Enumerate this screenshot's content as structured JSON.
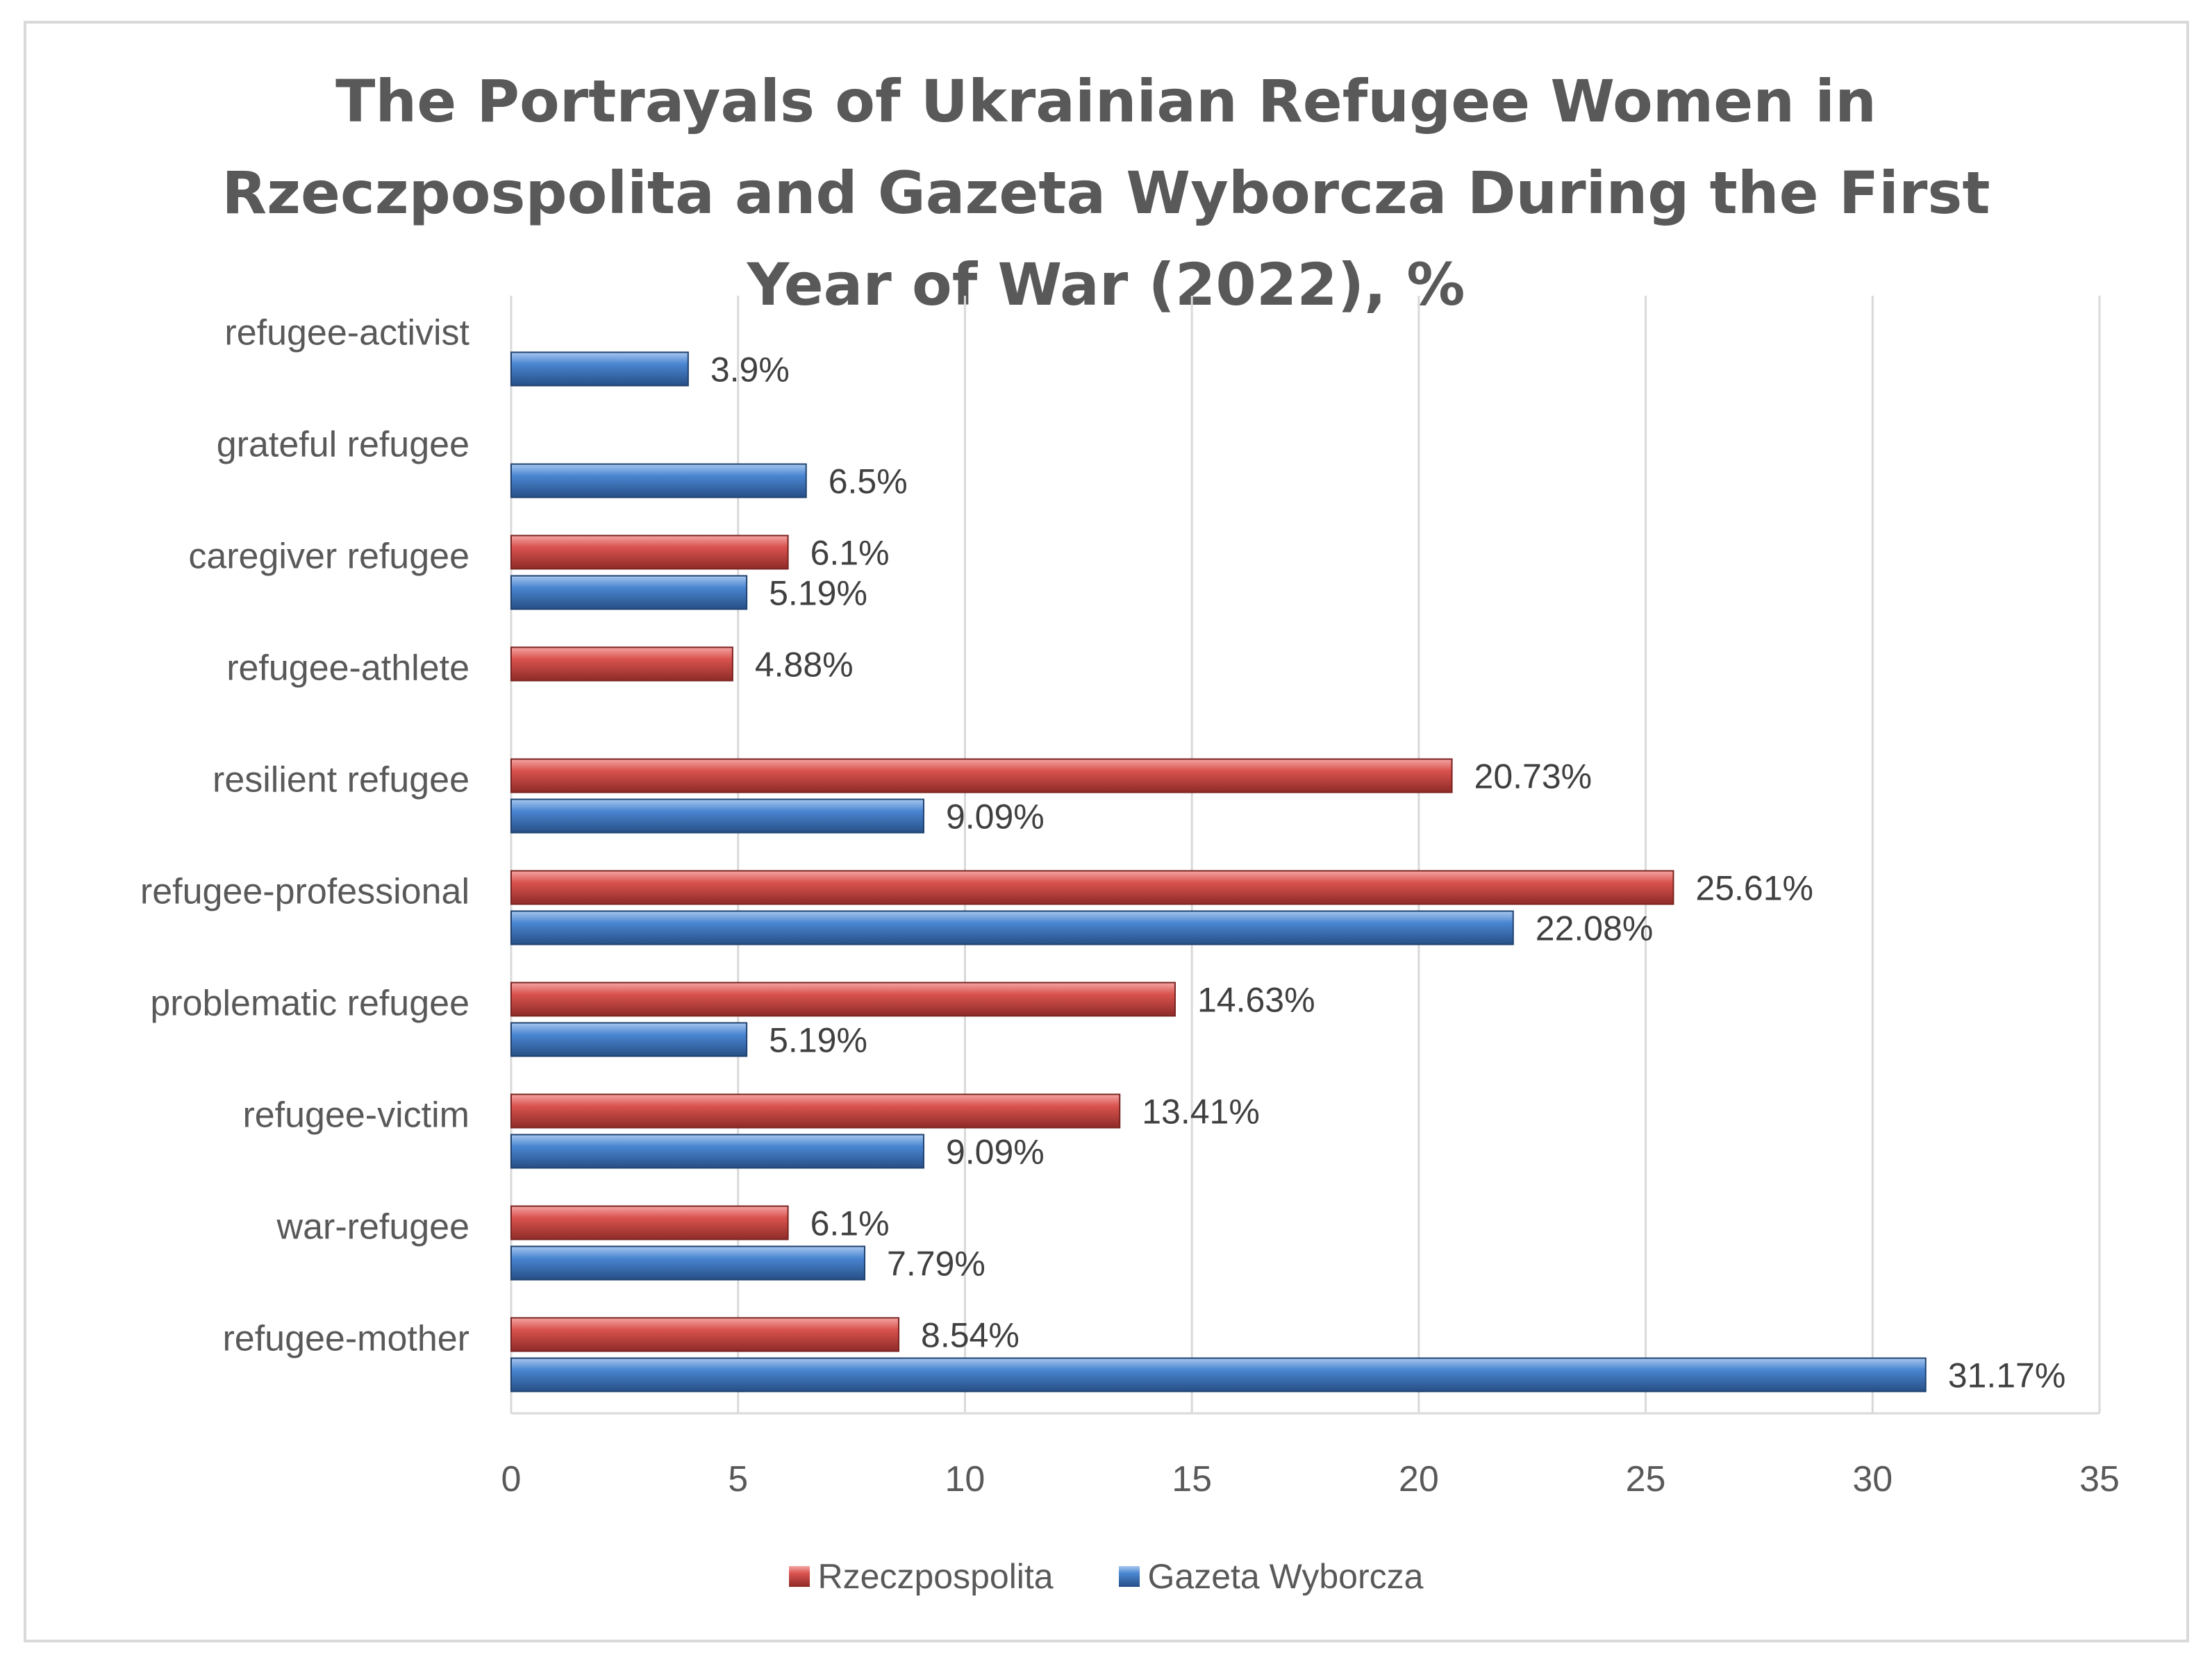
{
  "chart_data": {
    "type": "bar",
    "orientation": "horizontal",
    "title": "The Portrayals of Ukrainian Refugee Women in Rzeczpospolita and Gazeta Wyborcza During the First Year of War (2022), %",
    "title_lines": [
      "The Portrayals of Ukrainian Refugee Women in",
      "Rzeczpospolita and Gazeta Wyborcza During the First",
      "Year of War (2022), %"
    ],
    "categories": [
      "refugee-activist",
      "grateful refugee",
      "caregiver refugee",
      "refugee-athlete",
      "resilient refugee",
      "refugee-professional",
      "problematic refugee",
      "refugee-victim",
      "war-refugee",
      "refugee-mother"
    ],
    "series": [
      {
        "name": "Rzeczpospolita",
        "color": "#c0504d",
        "values": [
          null,
          null,
          6.1,
          4.88,
          20.73,
          25.61,
          14.63,
          13.41,
          6.1,
          8.54
        ],
        "labels": [
          null,
          null,
          "6.1%",
          "4.88%",
          "20.73%",
          "25.61%",
          "14.63%",
          "13.41%",
          "6.1%",
          "8.54%"
        ]
      },
      {
        "name": "Gazeta Wyborcza",
        "color": "#4f81bd",
        "values": [
          3.9,
          6.5,
          5.19,
          null,
          9.09,
          22.08,
          5.19,
          9.09,
          7.79,
          31.17
        ],
        "labels": [
          "3.9%",
          "6.5%",
          "5.19%",
          null,
          "9.09%",
          "22.08%",
          "5.19%",
          "9.09%",
          "7.79%",
          "31.17%"
        ]
      }
    ],
    "xlim": [
      0,
      35
    ],
    "xticks": [
      0,
      5,
      10,
      15,
      20,
      25,
      30,
      35
    ],
    "xtick_labels": [
      "0",
      "5",
      "10",
      "15",
      "20",
      "25",
      "30",
      "35"
    ],
    "grid": "vertical",
    "legend": "bottom"
  }
}
